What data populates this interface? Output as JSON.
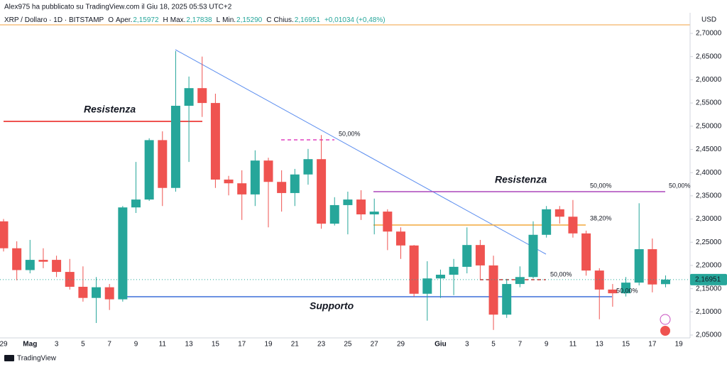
{
  "header": {
    "published": "Alex975 ha pubblicato su TradingView.com il Giu 18, 2025 05:53 UTC+2",
    "brand": "TradingView"
  },
  "chart_data": {
    "type": "candlestick",
    "title": "XRP / Dollaro · 1D · BITSTAMP",
    "ohlc_legend": [
      "O",
      "Aper.",
      "2,15972",
      "H",
      "Max.",
      "2,17838",
      "L",
      "Min.",
      "2,15290",
      "C",
      "Chius.",
      "2,16951",
      "+0,01034 (+0,48%)"
    ],
    "currency": "USD",
    "categories": [
      "29",
      null,
      "Mag",
      null,
      "3",
      null,
      "5",
      null,
      "7",
      null,
      "9",
      null,
      "11",
      null,
      "13",
      null,
      "15",
      null,
      "17",
      null,
      "19",
      null,
      "21",
      null,
      "23",
      null,
      "25",
      null,
      "27",
      null,
      "29",
      null,
      null,
      "Giu",
      null,
      "3",
      null,
      "5",
      null,
      "7",
      null,
      "9",
      null,
      "11",
      null,
      "13",
      null,
      "15",
      null,
      "17",
      null,
      "19"
    ],
    "open": [
      2.295,
      2.237,
      2.19,
      2.212,
      2.212,
      2.186,
      2.154,
      2.13,
      2.153,
      2.127,
      2.325,
      2.342,
      2.47,
      2.367,
      2.544,
      2.582,
      2.55,
      2.385,
      2.377,
      2.353,
      2.426,
      2.38,
      2.356,
      2.396,
      2.429,
      2.29,
      2.33,
      2.342,
      2.31,
      2.316,
      2.273,
      2.243,
      2.139,
      2.172,
      2.18,
      2.197,
      2.244,
      2.2,
      2.094,
      2.16,
      2.175,
      2.266,
      2.321,
      2.305,
      2.269,
      2.189,
      2.148,
      2.14,
      2.163,
      2.235,
      2.15972,
      null
    ],
    "high": [
      2.3,
      2.252,
      2.255,
      2.237,
      2.221,
      2.214,
      2.198,
      2.175,
      2.16,
      2.328,
      2.423,
      2.474,
      2.489,
      2.662,
      2.607,
      2.65,
      2.57,
      2.393,
      2.405,
      2.448,
      2.432,
      2.405,
      2.408,
      2.451,
      2.481,
      2.347,
      2.359,
      2.362,
      2.344,
      2.321,
      2.282,
      2.244,
      2.209,
      2.191,
      2.214,
      2.282,
      2.255,
      2.221,
      2.171,
      2.198,
      2.295,
      2.328,
      2.328,
      2.341,
      2.275,
      2.194,
      2.16,
      2.175,
      2.334,
      2.258,
      2.17838,
      null
    ],
    "low": [
      2.23,
      2.168,
      2.183,
      2.194,
      2.175,
      2.148,
      2.122,
      2.076,
      2.104,
      2.122,
      2.313,
      2.339,
      2.328,
      2.359,
      2.423,
      2.52,
      2.367,
      2.351,
      2.298,
      2.328,
      2.282,
      2.316,
      2.328,
      2.374,
      2.279,
      2.286,
      2.267,
      2.298,
      2.267,
      2.233,
      2.214,
      2.133,
      2.081,
      2.13,
      2.136,
      2.183,
      2.168,
      2.061,
      2.087,
      2.153,
      2.172,
      2.26,
      2.29,
      2.26,
      2.178,
      2.084,
      2.111,
      2.133,
      2.157,
      2.142,
      2.1529,
      null
    ],
    "close": [
      2.237,
      2.19,
      2.212,
      2.208,
      2.186,
      2.154,
      2.13,
      2.153,
      2.127,
      2.325,
      2.342,
      2.47,
      2.367,
      2.544,
      2.582,
      2.55,
      2.385,
      2.377,
      2.353,
      2.426,
      2.38,
      2.356,
      2.396,
      2.429,
      2.29,
      2.33,
      2.342,
      2.31,
      2.316,
      2.273,
      2.243,
      2.139,
      2.172,
      2.18,
      2.197,
      2.244,
      2.2,
      2.094,
      2.16,
      2.175,
      2.266,
      2.321,
      2.305,
      2.269,
      2.189,
      2.148,
      2.14,
      2.163,
      2.235,
      2.159,
      2.16951,
      null
    ],
    "up_color": "#26a69a",
    "down_color": "#ef5350",
    "ylim": [
      2.0454,
      2.7138
    ],
    "yticks": [
      {
        "value": 2.05,
        "label": "2,05000"
      },
      {
        "value": 2.1,
        "label": "2,10000"
      },
      {
        "value": 2.15,
        "label": "2,15000"
      },
      {
        "value": 2.2,
        "label": "2,20000"
      },
      {
        "value": 2.25,
        "label": "2,25000"
      },
      {
        "value": 2.3,
        "label": "2,30000"
      },
      {
        "value": 2.35,
        "label": "2,35000"
      },
      {
        "value": 2.4,
        "label": "2,40000"
      },
      {
        "value": 2.45,
        "label": "2,45000"
      },
      {
        "value": 2.5,
        "label": "2,50000"
      },
      {
        "value": 2.55,
        "label": "2,55000"
      },
      {
        "value": 2.6,
        "label": "2,60000"
      },
      {
        "value": 2.65,
        "label": "2,65000"
      },
      {
        "value": 2.7,
        "label": "2,70000"
      }
    ],
    "last_price": {
      "value": 2.16951,
      "label": "2,16951"
    },
    "grid": false,
    "annotations": [
      "Resistenza",
      "Supporto",
      "Resistenza",
      "50,00%",
      "50,00%",
      "50,00%",
      "38,20%",
      "50,00%",
      "50,00%"
    ]
  }
}
